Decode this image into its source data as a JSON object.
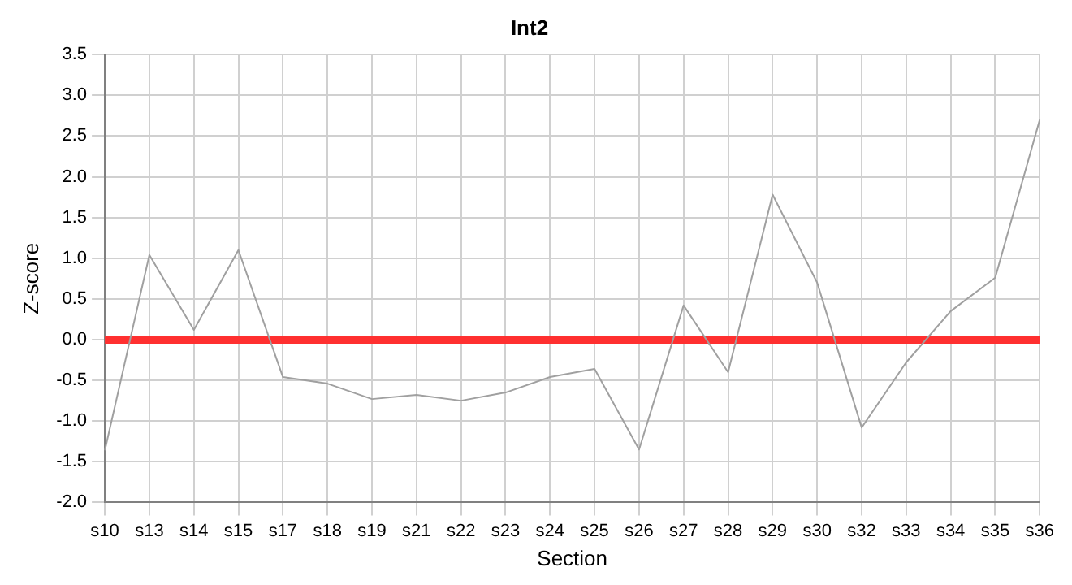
{
  "chart_data": {
    "type": "line",
    "title": "Int2",
    "xlabel": "Section",
    "ylabel": "Z-score",
    "categories": [
      "s10",
      "s13",
      "s14",
      "s15",
      "s17",
      "s18",
      "s19",
      "s21",
      "s22",
      "s23",
      "s24",
      "s25",
      "s26",
      "s27",
      "s28",
      "s29",
      "s30",
      "s32",
      "s33",
      "s34",
      "s35",
      "s36"
    ],
    "series": [
      {
        "color": "#a0a0a0",
        "values": [
          -1.36,
          1.04,
          0.12,
          1.1,
          -0.46,
          -0.54,
          -0.73,
          -0.68,
          -0.75,
          -0.65,
          -0.46,
          -0.36,
          -1.35,
          0.42,
          -0.4,
          1.78,
          0.7,
          -1.08,
          -0.28,
          0.35,
          0.76,
          2.7
        ]
      }
    ],
    "ylim": [
      -2.0,
      3.5
    ],
    "yticks": [
      {
        "value": -2,
        "label": "-2.0"
      },
      {
        "value": -1.5,
        "label": "-1.5"
      },
      {
        "value": -1,
        "label": "-1.0"
      },
      {
        "value": -0.5,
        "label": "-0.5"
      },
      {
        "value": 0,
        "label": "0.0"
      },
      {
        "value": 0.5,
        "label": "0.5"
      },
      {
        "value": 1,
        "label": "1.0"
      },
      {
        "value": 1.5,
        "label": "1.5"
      },
      {
        "value": 2,
        "label": "2.0"
      },
      {
        "value": 2.5,
        "label": "2.5"
      },
      {
        "value": 3,
        "label": "3.0"
      },
      {
        "value": 3.5,
        "label": "3.5"
      }
    ],
    "ref_lines": [
      {
        "axis": "y",
        "value": 0,
        "color": "#ff3030"
      }
    ],
    "grid": true,
    "legend": false,
    "marker": "none",
    "line_style": "solid"
  }
}
